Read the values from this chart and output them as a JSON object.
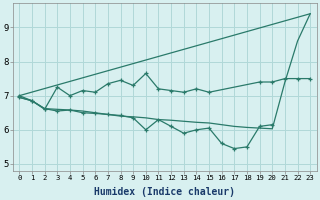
{
  "xlabel": "Humidex (Indice chaleur)",
  "bg_color": "#d8f0f0",
  "grid_color": "#b0d8d8",
  "line_color": "#2a7a6a",
  "xlim": [
    -0.5,
    23.5
  ],
  "ylim": [
    4.8,
    9.7
  ],
  "xticks": [
    0,
    1,
    2,
    3,
    4,
    5,
    6,
    7,
    8,
    9,
    10,
    11,
    12,
    13,
    14,
    15,
    16,
    17,
    18,
    19,
    20,
    21,
    22,
    23
  ],
  "yticks": [
    5,
    6,
    7,
    8,
    9
  ],
  "line1_x": [
    0,
    23
  ],
  "line1_y": [
    7.0,
    9.4
  ],
  "line2_x": [
    0,
    1,
    2,
    3,
    4,
    5,
    6,
    7,
    8,
    9,
    10,
    11,
    12,
    13,
    14,
    15,
    19,
    20,
    21,
    22,
    23
  ],
  "line2_y": [
    7.0,
    6.85,
    6.6,
    7.25,
    7.0,
    7.15,
    7.1,
    7.35,
    7.45,
    7.3,
    7.65,
    7.2,
    7.15,
    7.1,
    7.2,
    7.1,
    7.4,
    7.4,
    7.5,
    7.5,
    7.5
  ],
  "line3_x": [
    0,
    1,
    2,
    3,
    4,
    5,
    6,
    7,
    8,
    9,
    10,
    11,
    12,
    13,
    14,
    15,
    16,
    17,
    18,
    19,
    20,
    21,
    22,
    23
  ],
  "line3_y": [
    6.95,
    6.85,
    6.62,
    6.6,
    6.58,
    6.55,
    6.5,
    6.45,
    6.4,
    6.38,
    6.35,
    6.3,
    6.28,
    6.25,
    6.22,
    6.2,
    6.15,
    6.1,
    6.07,
    6.05,
    6.03,
    7.4,
    8.6,
    9.4
  ],
  "line4_x": [
    0,
    1,
    2,
    3,
    4,
    5,
    6,
    7,
    8,
    9,
    10,
    11,
    12,
    13,
    14,
    15,
    16,
    17,
    18,
    19,
    20
  ],
  "line4_y": [
    6.95,
    6.85,
    6.62,
    6.55,
    6.58,
    6.5,
    6.48,
    6.45,
    6.42,
    6.35,
    6.0,
    6.3,
    6.1,
    5.9,
    6.0,
    6.05,
    5.6,
    5.45,
    5.5,
    6.1,
    6.15
  ]
}
